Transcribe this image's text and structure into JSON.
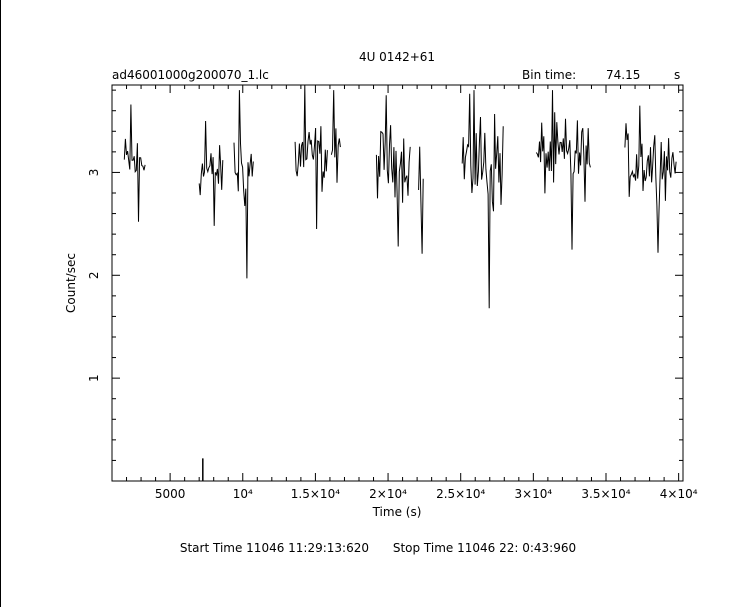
{
  "chart_data": {
    "type": "line",
    "title": "4U 0142+61",
    "file_name": "ad46001000g200070_1.lc",
    "bin_time_label": "Bin time:",
    "bin_time_value": "74.15",
    "bin_time_unit": "s",
    "xlabel": "Time (s)",
    "ylabel": "Count/sec",
    "xlim": [
      1000,
      40300
    ],
    "ylim": [
      0,
      3.85
    ],
    "grid": false,
    "x_ticks": [
      {
        "value": 5000,
        "label": "5000"
      },
      {
        "value": 10000,
        "label": "10⁴"
      },
      {
        "value": 15000,
        "label": "1.5×10⁴"
      },
      {
        "value": 20000,
        "label": "2×10⁴"
      },
      {
        "value": 25000,
        "label": "2.5×10⁴"
      },
      {
        "value": 30000,
        "label": "3×10⁴"
      },
      {
        "value": 35000,
        "label": "3.5×10⁴"
      },
      {
        "value": 40000,
        "label": "4×10⁴"
      }
    ],
    "y_ticks": [
      {
        "value": 1,
        "label": "1"
      },
      {
        "value": 2,
        "label": "2"
      },
      {
        "value": 3,
        "label": "3"
      }
    ],
    "segments": [
      {
        "start": 1850,
        "end": 3350,
        "mean": 3.1,
        "min": 2.52,
        "max": 3.66
      },
      {
        "start": 7000,
        "end": 8700,
        "mean": 3.0,
        "min": 2.48,
        "max": 3.5
      },
      {
        "start": 9400,
        "end": 10800,
        "mean": 3.05,
        "min": 1.97,
        "max": 3.8
      },
      {
        "start": 13600,
        "end": 15900,
        "mean": 3.15,
        "min": 2.45,
        "max": 3.85
      },
      {
        "start": 16100,
        "end": 16800,
        "mean": 3.2,
        "min": 2.9,
        "max": 3.8
      },
      {
        "start": 19200,
        "end": 21600,
        "mean": 3.1,
        "min": 2.28,
        "max": 3.75
      },
      {
        "start": 22100,
        "end": 22500,
        "mean": 2.9,
        "min": 2.21,
        "max": 3.25
      },
      {
        "start": 25100,
        "end": 28000,
        "mean": 3.1,
        "min": 1.68,
        "max": 3.8
      },
      {
        "start": 30200,
        "end": 34000,
        "mean": 3.15,
        "min": 2.25,
        "max": 3.8
      },
      {
        "start": 36300,
        "end": 39900,
        "mean": 3.1,
        "min": 2.22,
        "max": 3.65
      }
    ],
    "outlier": {
      "x": 7250,
      "y": 0.17
    }
  },
  "footer": {
    "start_time": "Start Time 11046 11:29:13:620",
    "stop_time": "Stop Time 11046 22: 0:43:960"
  }
}
